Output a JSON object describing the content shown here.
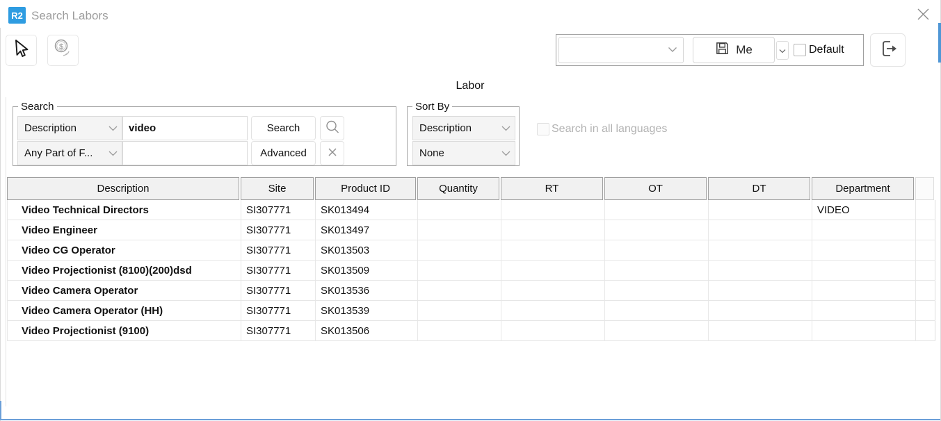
{
  "window": {
    "logo_text": "R2",
    "title": "Search Labors"
  },
  "colors": {
    "brand_blue": "#2e9ce1",
    "edge_blue": "#4f97d6"
  },
  "presets": {
    "saved_search_value": "",
    "me_button": "Me",
    "default_checkbox": "Default"
  },
  "center_label": "Labor",
  "search_box": {
    "legend": "Search",
    "field_select": "Description",
    "keyword_value": "video",
    "keyword2_value": "",
    "match_select": "Any Part of F...",
    "search_button": "Search",
    "advanced_button": "Advanced"
  },
  "sort_box": {
    "legend": "Sort By",
    "primary_select": "Description",
    "secondary_select": "None"
  },
  "all_languages_label": "Search in all languages",
  "table": {
    "columns": [
      "Description",
      "Site",
      "Product ID",
      "Quantity",
      "RT",
      "OT",
      "DT",
      "Department"
    ],
    "rows": [
      [
        "Video Technical Directors",
        "SI307771",
        "SK013494",
        "",
        "",
        "",
        "",
        "VIDEO"
      ],
      [
        "Video Engineer",
        "SI307771",
        "SK013497",
        "",
        "",
        "",
        "",
        ""
      ],
      [
        "Video CG Operator",
        "SI307771",
        "SK013503",
        "",
        "",
        "",
        "",
        ""
      ],
      [
        "Video Projectionist (8100)(200)dsd",
        "SI307771",
        "SK013509",
        "",
        "",
        "",
        "",
        ""
      ],
      [
        "Video Camera Operator",
        "SI307771",
        "SK013536",
        "",
        "",
        "",
        "",
        ""
      ],
      [
        "Video Camera Operator (HH)",
        "SI307771",
        "SK013539",
        "",
        "",
        "",
        "",
        ""
      ],
      [
        "Video Projectionist (9100)",
        "SI307771",
        "SK013506",
        "",
        "",
        "",
        "",
        ""
      ]
    ]
  }
}
